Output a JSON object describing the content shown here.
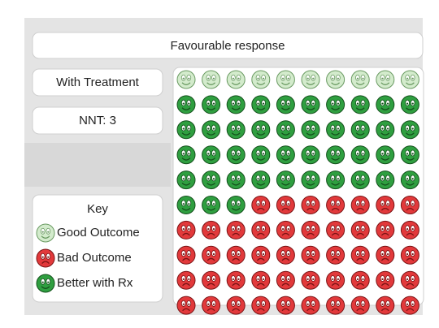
{
  "header": {
    "title": "Favourable response"
  },
  "labels": {
    "group": "With Treatment",
    "nnt": "NNT: 3"
  },
  "key": {
    "title": "Key",
    "items": [
      {
        "label": "Good Outcome",
        "count": 10,
        "color": "#d3ebcc",
        "stroke": "#6a9a62",
        "face": "smile"
      },
      {
        "label": "Bad Outcome",
        "count": 47,
        "color": "#e2393b",
        "stroke": "#7a1415",
        "face": "frown"
      },
      {
        "label": "Better with Rx",
        "count": 43,
        "color": "#2f9f40",
        "stroke": "#14501c",
        "face": "smile"
      }
    ]
  },
  "grid": {
    "columns": 10,
    "order": [
      0,
      2,
      1
    ]
  }
}
